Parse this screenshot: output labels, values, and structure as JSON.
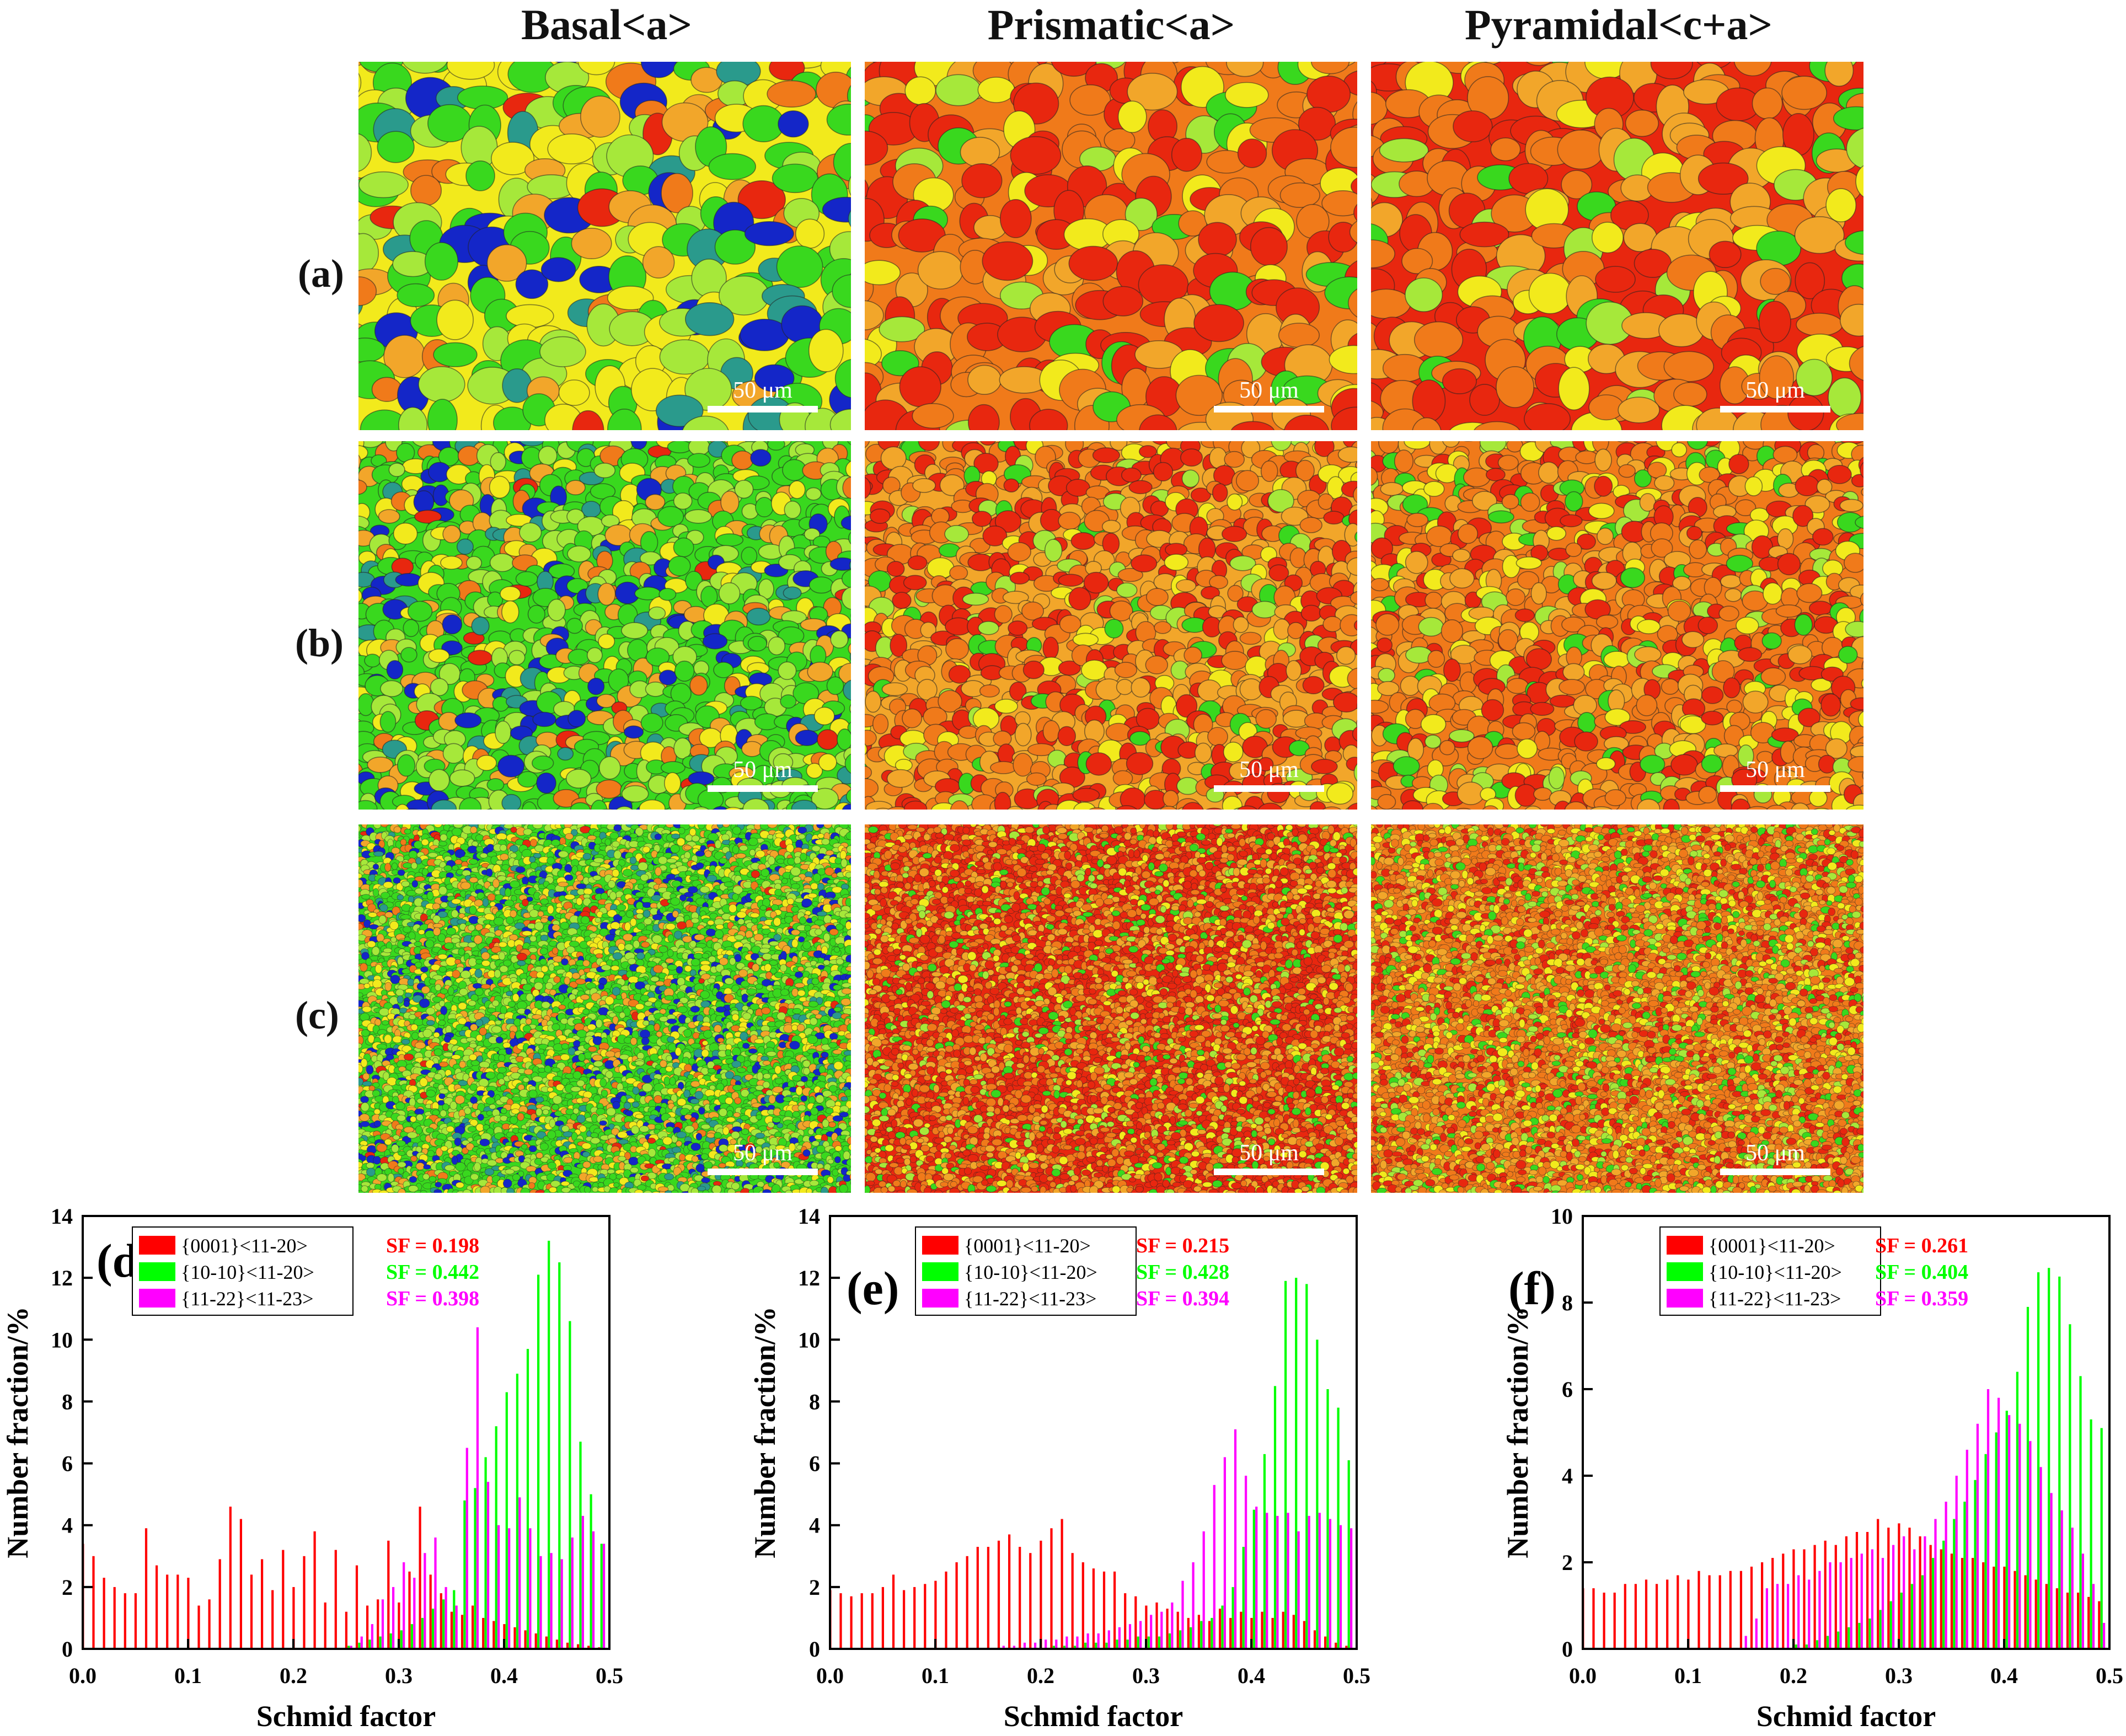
{
  "figure": {
    "column_titles": [
      "Basal<a>",
      "Prismatic<a>",
      "Pyramidal<c+a>"
    ],
    "row_labels": [
      "(a)",
      "(b)",
      "(c)"
    ],
    "scale_bar_label": "50 μm",
    "map_palette": {
      "red": "#e8270f",
      "orange": "#f07a1a",
      "amber": "#f2a62a",
      "yellow": "#f2ea1c",
      "lime": "#a6e83a",
      "green": "#39d81e",
      "teal": "#2a9a8c",
      "blue": "#1426c8",
      "boundary": "#222222"
    }
  },
  "chart_data": [
    {
      "panel": "(d)",
      "type": "bar",
      "xlabel": "Schmid factor",
      "ylabel": "Number fraction/%",
      "xlim": [
        0.0,
        0.5
      ],
      "ylim": [
        0,
        14
      ],
      "xticks": [
        0.0,
        0.1,
        0.2,
        0.3,
        0.4,
        0.5
      ],
      "yticks": [
        0,
        2,
        4,
        6,
        8,
        10,
        12,
        14
      ],
      "bin_centers": [
        0.0025,
        0.0125,
        0.0225,
        0.0325,
        0.0425,
        0.0525,
        0.0625,
        0.0725,
        0.0825,
        0.0925,
        0.1025,
        0.1125,
        0.1225,
        0.1325,
        0.1425,
        0.1525,
        0.1625,
        0.1725,
        0.1825,
        0.1925,
        0.2025,
        0.2125,
        0.2225,
        0.2325,
        0.2425,
        0.2525,
        0.2625,
        0.2725,
        0.2825,
        0.2925,
        0.3025,
        0.3125,
        0.3225,
        0.3325,
        0.3425,
        0.3525,
        0.3625,
        0.3725,
        0.3825,
        0.3925,
        0.4025,
        0.4125,
        0.4225,
        0.4325,
        0.4425,
        0.4525,
        0.4625,
        0.4725,
        0.4825,
        0.4925
      ],
      "series": [
        {
          "name": "{0001}<11-20>",
          "color": "#ff0000",
          "sf_label": "SF = 0.198",
          "values": [
            3.4,
            3.0,
            2.3,
            2.0,
            1.8,
            1.8,
            3.9,
            2.7,
            2.4,
            2.4,
            2.3,
            1.4,
            1.6,
            2.9,
            4.6,
            4.2,
            2.4,
            2.9,
            1.9,
            3.2,
            2.0,
            3.0,
            3.8,
            1.5,
            3.2,
            1.2,
            2.7,
            1.4,
            1.6,
            3.5,
            1.5,
            2.5,
            4.6,
            2.4,
            1.8,
            1.2,
            1.1,
            1.4,
            1.0,
            0.9,
            0.8,
            0.7,
            0.6,
            0.5,
            0.4,
            0.3,
            0.2,
            0.15,
            0.1,
            0.05
          ]
        },
        {
          "name": "{10-10}<11-20>",
          "color": "#00ff00",
          "sf_label": "SF = 0.442",
          "values": [
            0,
            0,
            0,
            0,
            0,
            0,
            0,
            0,
            0,
            0,
            0,
            0,
            0,
            0,
            0,
            0,
            0,
            0,
            0,
            0,
            0,
            0,
            0,
            0,
            0,
            0.1,
            0.2,
            0.3,
            0.4,
            0.5,
            0.6,
            0.8,
            1.0,
            1.3,
            1.6,
            1.9,
            4.8,
            5.2,
            6.2,
            7.2,
            8.3,
            8.9,
            9.7,
            12.1,
            13.2,
            12.5,
            10.6,
            6.7,
            5.0,
            3.4
          ]
        },
        {
          "name": "{11-22}<11-23>",
          "color": "#ff00ff",
          "sf_label": "SF = 0.398",
          "values": [
            0,
            0,
            0,
            0,
            0,
            0,
            0,
            0,
            0,
            0,
            0,
            0,
            0,
            0,
            0,
            0,
            0,
            0,
            0,
            0,
            0,
            0,
            0,
            0,
            0,
            0.1,
            0.4,
            0.8,
            1.6,
            2.0,
            2.8,
            2.3,
            3.1,
            3.6,
            2.0,
            1.4,
            6.5,
            10.4,
            5.4,
            4.0,
            3.9,
            4.9,
            3.9,
            3.0,
            3.1,
            2.9,
            3.6,
            4.3,
            3.8,
            3.4
          ]
        }
      ]
    },
    {
      "panel": "(e)",
      "type": "bar",
      "xlabel": "Schmid factor",
      "ylabel": "Number fraction/%",
      "xlim": [
        0.0,
        0.5
      ],
      "ylim": [
        0,
        14
      ],
      "xticks": [
        0.0,
        0.1,
        0.2,
        0.3,
        0.4,
        0.5
      ],
      "yticks": [
        0,
        2,
        4,
        6,
        8,
        10,
        12,
        14
      ],
      "bin_centers": [
        0.0025,
        0.0125,
        0.0225,
        0.0325,
        0.0425,
        0.0525,
        0.0625,
        0.0725,
        0.0825,
        0.0925,
        0.1025,
        0.1125,
        0.1225,
        0.1325,
        0.1425,
        0.1525,
        0.1625,
        0.1725,
        0.1825,
        0.1925,
        0.2025,
        0.2125,
        0.2225,
        0.2325,
        0.2425,
        0.2525,
        0.2625,
        0.2725,
        0.2825,
        0.2925,
        0.3025,
        0.3125,
        0.3225,
        0.3325,
        0.3425,
        0.3525,
        0.3625,
        0.3725,
        0.3825,
        0.3925,
        0.4025,
        0.4125,
        0.4225,
        0.4325,
        0.4425,
        0.4525,
        0.4625,
        0.4725,
        0.4825,
        0.4925
      ],
      "series": [
        {
          "name": "{0001}<11-20>",
          "color": "#ff0000",
          "sf_label": "SF = 0.215",
          "values": [
            1.9,
            1.8,
            1.7,
            1.8,
            1.8,
            2.0,
            2.4,
            1.9,
            2.0,
            2.1,
            2.2,
            2.5,
            2.8,
            3.0,
            3.3,
            3.3,
            3.5,
            3.7,
            3.3,
            3.1,
            3.5,
            3.9,
            4.2,
            3.1,
            2.8,
            2.6,
            2.5,
            2.5,
            1.8,
            1.7,
            1.4,
            1.5,
            1.3,
            1.2,
            1.0,
            1.1,
            0.9,
            1.3,
            1.0,
            1.2,
            1.0,
            1.2,
            1.0,
            1.2,
            1.1,
            0.9,
            0.6,
            0.4,
            0.2,
            0.1
          ]
        },
        {
          "name": "{10-10}<11-20>",
          "color": "#00ff00",
          "sf_label": "SF = 0.428",
          "values": [
            0,
            0,
            0,
            0,
            0,
            0,
            0,
            0,
            0,
            0,
            0,
            0,
            0,
            0,
            0,
            0,
            0,
            0,
            0,
            0,
            0,
            0.1,
            0.1,
            0.1,
            0.2,
            0.2,
            0.2,
            0.3,
            0.3,
            0.4,
            0.4,
            0.4,
            0.5,
            0.6,
            0.7,
            0.9,
            1.0,
            1.4,
            2.0,
            3.3,
            4.5,
            6.3,
            8.5,
            11.9,
            12.0,
            11.8,
            10.0,
            8.4,
            7.8,
            6.1
          ]
        },
        {
          "name": "{11-22}<11-23>",
          "color": "#ff00ff",
          "sf_label": "SF = 0.394",
          "values": [
            0,
            0,
            0,
            0,
            0,
            0,
            0,
            0,
            0,
            0,
            0,
            0,
            0,
            0,
            0,
            0,
            0.1,
            0.1,
            0.2,
            0.2,
            0.3,
            0.3,
            0.4,
            0.4,
            0.5,
            0.5,
            0.6,
            0.7,
            0.8,
            0.9,
            1.1,
            1.2,
            1.5,
            2.2,
            2.8,
            3.8,
            5.3,
            6.2,
            7.1,
            5.6,
            4.6,
            4.4,
            4.3,
            4.4,
            3.8,
            4.3,
            4.4,
            4.2,
            4.0,
            3.9
          ]
        }
      ]
    },
    {
      "panel": "(f)",
      "type": "bar",
      "xlabel": "Schmid factor",
      "ylabel": "Number fraction/%",
      "xlim": [
        0.0,
        0.5
      ],
      "ylim": [
        0,
        10
      ],
      "xticks": [
        0.0,
        0.1,
        0.2,
        0.3,
        0.4,
        0.5
      ],
      "yticks": [
        0,
        2,
        4,
        6,
        8,
        10
      ],
      "bin_centers": [
        0.0025,
        0.0125,
        0.0225,
        0.0325,
        0.0425,
        0.0525,
        0.0625,
        0.0725,
        0.0825,
        0.0925,
        0.1025,
        0.1125,
        0.1225,
        0.1325,
        0.1425,
        0.1525,
        0.1625,
        0.1725,
        0.1825,
        0.1925,
        0.2025,
        0.2125,
        0.2225,
        0.2325,
        0.2425,
        0.2525,
        0.2625,
        0.2725,
        0.2825,
        0.2925,
        0.3025,
        0.3125,
        0.3225,
        0.3325,
        0.3425,
        0.3525,
        0.3625,
        0.3725,
        0.3825,
        0.3925,
        0.4025,
        0.4125,
        0.4225,
        0.4325,
        0.4425,
        0.4525,
        0.4625,
        0.4725,
        0.4825,
        0.4925
      ],
      "series": [
        {
          "name": "{0001}<11-20>",
          "color": "#ff0000",
          "sf_label": "SF = 0.261",
          "values": [
            1.4,
            1.4,
            1.3,
            1.3,
            1.5,
            1.5,
            1.6,
            1.5,
            1.6,
            1.7,
            1.6,
            1.8,
            1.7,
            1.7,
            1.8,
            1.8,
            1.9,
            2.0,
            2.1,
            2.2,
            2.3,
            2.3,
            2.4,
            2.5,
            2.4,
            2.6,
            2.7,
            2.7,
            3.0,
            2.8,
            2.9,
            2.8,
            2.6,
            2.4,
            2.3,
            2.2,
            2.1,
            2.1,
            2.0,
            1.9,
            1.9,
            1.8,
            1.7,
            1.6,
            1.5,
            1.4,
            1.3,
            1.3,
            1.2,
            1.1
          ]
        },
        {
          "name": "{10-10}<11-20>",
          "color": "#00ff00",
          "sf_label": "SF = 0.404",
          "values": [
            0,
            0,
            0,
            0,
            0,
            0,
            0,
            0,
            0,
            0,
            0,
            0,
            0,
            0,
            0,
            0,
            0,
            0,
            0,
            0,
            0.1,
            0.1,
            0.2,
            0.3,
            0.4,
            0.5,
            0.6,
            0.7,
            0.9,
            1.1,
            1.3,
            1.5,
            1.7,
            2.1,
            2.5,
            3.0,
            3.4,
            3.9,
            4.5,
            5.0,
            5.5,
            6.4,
            7.9,
            8.7,
            8.8,
            8.6,
            7.5,
            6.3,
            5.3,
            5.1
          ]
        },
        {
          "name": "{11-22}<11-23>",
          "color": "#ff00ff",
          "sf_label": "SF = 0.359",
          "values": [
            0,
            0,
            0,
            0,
            0,
            0,
            0,
            0,
            0,
            0,
            0,
            0,
            0,
            0,
            0,
            0.3,
            0.7,
            1.4,
            1.5,
            1.5,
            1.7,
            1.6,
            1.8,
            2.0,
            2.0,
            2.1,
            2.2,
            2.3,
            2.1,
            2.4,
            2.6,
            2.3,
            2.6,
            3.0,
            3.4,
            4.0,
            4.6,
            5.2,
            6.0,
            5.8,
            5.4,
            5.2,
            4.8,
            4.2,
            3.6,
            3.2,
            2.8,
            2.2,
            1.5,
            0.6
          ]
        }
      ]
    }
  ]
}
